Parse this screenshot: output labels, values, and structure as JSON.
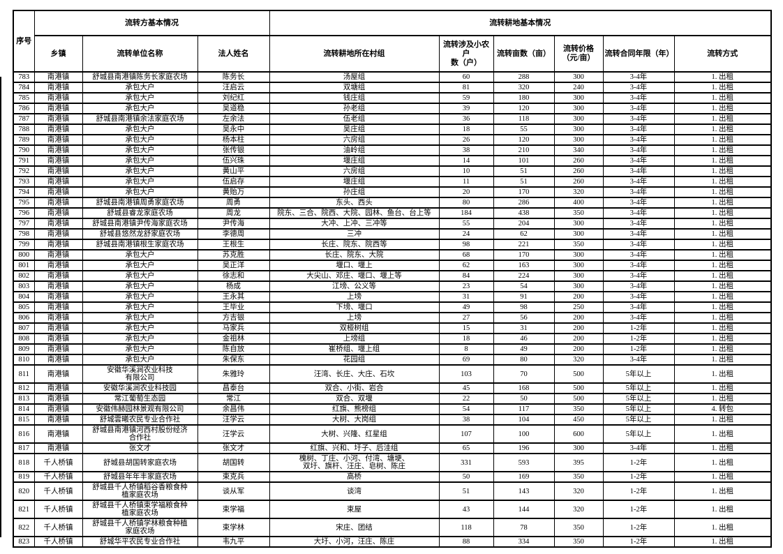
{
  "colors": {
    "background": "#ffffff",
    "grid": "#000000",
    "text": "#000000"
  },
  "table": {
    "header": {
      "serial": "序号",
      "group_transferor": "流转方基本情况",
      "group_land": "流转耕地基本情况",
      "township": "乡镇",
      "unit": "流转单位名称",
      "legal": "法人姓名",
      "village": "流转耕地所在村组",
      "households": "流转涉及小农户\n数（户）",
      "mu": "流转亩数（亩）",
      "price": "流转价格\n（元/亩）",
      "term": "流转合同年限（年）",
      "mode": "流转方式"
    },
    "columns": [
      "no",
      "township",
      "unit",
      "legal",
      "village",
      "households",
      "mu",
      "price",
      "term",
      "mode"
    ],
    "rows": [
      [
        "783",
        "南港镇",
        "舒城县南港镇陈务长家庭农场",
        "陈务长",
        "汤屋组",
        "60",
        "288",
        "300",
        "3-4年",
        "1. 出租"
      ],
      [
        "784",
        "南港镇",
        "承包大户",
        "汪启云",
        "双塘组",
        "81",
        "320",
        "240",
        "3-4年",
        "1. 出租"
      ],
      [
        "785",
        "南港镇",
        "承包大户",
        "刘纪红",
        "钱庄组",
        "59",
        "180",
        "300",
        "3-4年",
        "1. 出租"
      ],
      [
        "786",
        "南港镇",
        "承包大户",
        "吴道稳",
        "孙老组",
        "39",
        "120",
        "300",
        "3-4年",
        "1. 出租"
      ],
      [
        "787",
        "南港镇",
        "舒城县南港镇余法家庭农场",
        "左余法",
        "伍老组",
        "36",
        "118",
        "300",
        "3-4年",
        "1. 出租"
      ],
      [
        "788",
        "南港镇",
        "承包大户",
        "吴永中",
        "吴庄组",
        "18",
        "55",
        "300",
        "3-4年",
        "1. 出租"
      ],
      [
        "789",
        "南港镇",
        "承包大户",
        "杨本柱",
        "六房组",
        "26",
        "120",
        "300",
        "3-4年",
        "1. 出租"
      ],
      [
        "790",
        "南港镇",
        "承包大户",
        "张传银",
        "油岭组",
        "38",
        "210",
        "340",
        "3-4年",
        "1. 出租"
      ],
      [
        "791",
        "南港镇",
        "承包大户",
        "伍兴珠",
        "堰庄组",
        "14",
        "101",
        "260",
        "3-4年",
        "1. 出租"
      ],
      [
        "792",
        "南港镇",
        "承包大户",
        "黄山平",
        "六房组",
        "10",
        "51",
        "260",
        "3-4年",
        "1. 出租"
      ],
      [
        "793",
        "南港镇",
        "承包大户",
        "伍启存",
        "堰庄组",
        "11",
        "51",
        "260",
        "3-4年",
        "1. 出租"
      ],
      [
        "794",
        "南港镇",
        "承包大户",
        "黄贻万",
        "孙庄组",
        "20",
        "170",
        "320",
        "3-4年",
        "1. 出租"
      ],
      [
        "795",
        "南港镇",
        "舒城县南港镇周勇家庭农场",
        "周勇",
        "东头、西头",
        "80",
        "286",
        "400",
        "3-4年",
        "1. 出租"
      ],
      [
        "796",
        "南港镇",
        "舒城县睿龙家庭农场",
        "周龙",
        "院东、三合、院西、大院、园林、鱼台、台上等",
        "184",
        "438",
        "350",
        "3-4年",
        "1. 出租"
      ],
      [
        "797",
        "南港镇",
        "舒城县南港镇尹传海家庭农场",
        "尹传海",
        "大冲、上冲、三冲等",
        "55",
        "204",
        "300",
        "3-4年",
        "1. 出租"
      ],
      [
        "798",
        "南港镇",
        "舒城县悠然龙舒家庭农场",
        "李德周",
        "三冲",
        "24",
        "62",
        "300",
        "3-4年",
        "1. 出租"
      ],
      [
        "799",
        "南港镇",
        "舒城县南港镇根生家庭农场",
        "王根生",
        "长庄、院东、院西等",
        "98",
        "221",
        "350",
        "3-4年",
        "1. 出租"
      ],
      [
        "800",
        "南港镇",
        "承包大户",
        "苏克胜",
        "长庄、院东、大院",
        "68",
        "170",
        "300",
        "3-4年",
        "1. 出租"
      ],
      [
        "801",
        "南港镇",
        "承包大户",
        "吴正洋",
        "堰口、堰上",
        "62",
        "163",
        "300",
        "3-4年",
        "1. 出租"
      ],
      [
        "802",
        "南港镇",
        "承包大户",
        "徐志和",
        "大尖山、邓庄、堰口、堰上等",
        "84",
        "224",
        "300",
        "3-4年",
        "1. 出租"
      ],
      [
        "803",
        "南港镇",
        "承包大户",
        "杨成",
        "江塝、公义等",
        "23",
        "54",
        "300",
        "3-4年",
        "1. 出租"
      ],
      [
        "804",
        "南港镇",
        "承包大户",
        "王永其",
        "上塝",
        "31",
        "91",
        "200",
        "3-4年",
        "1. 出租"
      ],
      [
        "805",
        "南港镇",
        "承包大户",
        "王毕业",
        "下塝、堰口",
        "49",
        "98",
        "250",
        "3-4年",
        "1. 出租"
      ],
      [
        "806",
        "南港镇",
        "承包大户",
        "方吉银",
        "上塝",
        "27",
        "56",
        "200",
        "3-4年",
        "1. 出租"
      ],
      [
        "807",
        "南港镇",
        "承包大户",
        "马家兵",
        "双桠树组",
        "15",
        "31",
        "200",
        "1-2年",
        "1. 出租"
      ],
      [
        "808",
        "南港镇",
        "承包大户",
        "金祖林",
        "上塝组",
        "18",
        "46",
        "200",
        "1-2年",
        "1. 出租"
      ],
      [
        "809",
        "南港镇",
        "承包大户",
        "陈自放",
        "崔桥组、堰上组",
        "8",
        "49",
        "200",
        "1-2年",
        "1. 出租"
      ],
      [
        "810",
        "南港镇",
        "承包大户",
        "朱保东",
        "花园组",
        "69",
        "80",
        "320",
        "3-4年",
        "1. 出租"
      ],
      [
        "811",
        "南港镇",
        "安徽华溪涧农业科技\n有限公司",
        "朱雅玲",
        "汪湾、长庄、大庄、石坎",
        "103",
        "70",
        "500",
        "5年以上",
        "1. 出租"
      ],
      [
        "812",
        "南港镇",
        "安徽华溪涧农业科技园",
        "昌泰台",
        "双合、小街、岩合",
        "45",
        "168",
        "500",
        "5年以上",
        "1. 出租"
      ],
      [
        "813",
        "南港镇",
        "常江葡萄生态园",
        "常江",
        "双合、双堰",
        "22",
        "50",
        "500",
        "5年以上",
        "1. 出租"
      ],
      [
        "814",
        "南港镇",
        "安徽伟赫园林景观有限公司",
        "余昌伟",
        "红旗、熊榜组",
        "54",
        "117",
        "350",
        "5年以上",
        "4. 转包"
      ],
      [
        "815",
        "南港镇",
        "舒城雲曦农民专业合作社",
        "汪学云",
        "大树、大岗组",
        "38",
        "104",
        "450",
        "5年以上",
        "1. 出租"
      ],
      [
        "816",
        "南港镇",
        "舒城县南港镇河西村股份经济\n合作社",
        "汪学云",
        "大树、兴隆、红星组",
        "107",
        "100",
        "600",
        "5年以上",
        "1. 出租"
      ],
      [
        "817",
        "南港镇",
        "张文才",
        "张文才",
        "红旗、兴和、圩子、后洼组",
        "65",
        "196",
        "300",
        "3-4年",
        "1. 出租"
      ],
      [
        "818",
        "千人桥镇",
        "舒城县胡国转家庭农场",
        "胡国转",
        "槐树、丁庄、小河、付湾、塘埂、\n双圩、旗杆、汪庄、皂树、陈庄",
        "331",
        "593",
        "395",
        "1-2年",
        "1. 出租"
      ],
      [
        "819",
        "千人桥镇",
        "舒城县年年丰家庭农场",
        "束克兵",
        "高桥",
        "50",
        "169",
        "350",
        "1-2年",
        "1. 出租"
      ],
      [
        "820",
        "千人桥镇",
        "舒城县千人桥镇稻谷香粮食种\n植家庭农场",
        "谈从军",
        "谈湾",
        "51",
        "143",
        "320",
        "1-2年",
        "1. 出租"
      ],
      [
        "821",
        "千人桥镇",
        "舒城县千人桥镇束学福粮食种\n植家庭农场",
        "束学福",
        "束屋",
        "43",
        "144",
        "320",
        "1-2年",
        "1. 出租"
      ],
      [
        "822",
        "千人桥镇",
        "舒城县千人桥镇学林粮食种植\n家庭农场",
        "束学林",
        "宋庄、团结",
        "118",
        "78",
        "350",
        "1-2年",
        "1. 出租"
      ],
      [
        "823",
        "千人桥镇",
        "舒城华平农民专业合作社",
        "韦九平",
        "大圩、小河，汪庄、陈庄",
        "88",
        "334",
        "350",
        "1-2年",
        "1. 出租"
      ]
    ]
  }
}
